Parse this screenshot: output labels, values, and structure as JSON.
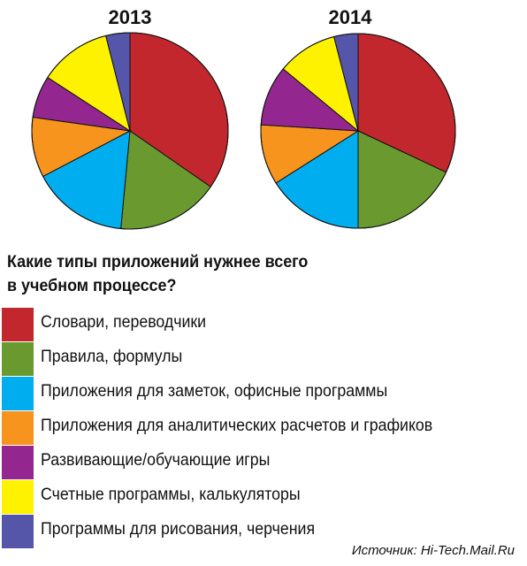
{
  "chart_data": {
    "type": "pie",
    "title": "Какие типы приложений нужнее всего в учебном процессе?",
    "categories": [
      "Словари, переводчики",
      "Правила, формулы",
      "Приложения для заметок, офисные программы",
      "Приложения для аналитических расчетов и графиков",
      "Развивающие/обучающие игры",
      "Счетные программы, калькуляторы",
      "Программы для рисования, черчения"
    ],
    "colors": [
      "#c1272d",
      "#6a9a2f",
      "#00aeef",
      "#f7941d",
      "#93278f",
      "#fff200",
      "#5555aa"
    ],
    "series": [
      {
        "name": "2013",
        "values": [
          35,
          17,
          16,
          10,
          7,
          12,
          4
        ]
      },
      {
        "name": "2014",
        "values": [
          32,
          18,
          16,
          10,
          10,
          10,
          4
        ]
      }
    ]
  },
  "question": {
    "line1": "Какие типы приложений нужнее всего",
    "line2": "в учебном процессе?"
  },
  "source": "Источник: Hi-Tech.Mail.Ru"
}
